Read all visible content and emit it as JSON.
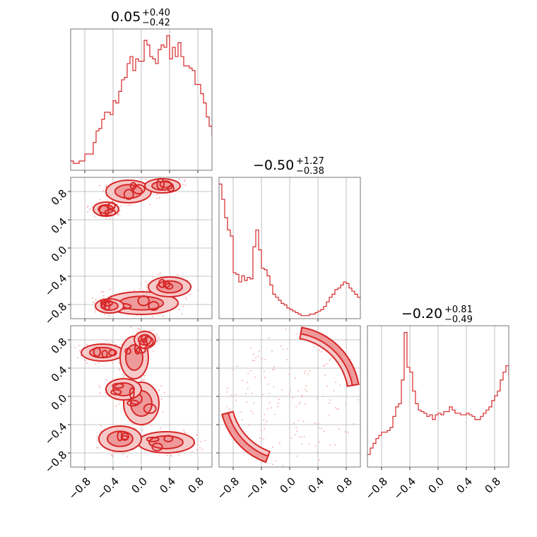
{
  "colors": {
    "series": "#d62728",
    "grid": "#b0b0b0",
    "scatter": "#f5b5b5",
    "fill_light": "#f6c9c9",
    "fill_mid": "#ef9a9a"
  },
  "chart_data": [
    {
      "type": "histogram",
      "panel": "hist-param-1",
      "title": {
        "value": "0.05",
        "plus": "+0.40",
        "minus": "−0.42"
      },
      "x_range": [
        -1.0,
        1.0
      ],
      "bins_x_start": -1.0,
      "bin_width": 0.04,
      "values": [
        4,
        3,
        3,
        4,
        4,
        7,
        7,
        7,
        12,
        17,
        18,
        22,
        25,
        25,
        24,
        30,
        29,
        34,
        39,
        40,
        46,
        49,
        43,
        48,
        47,
        47,
        56,
        54,
        49,
        48,
        46,
        52,
        54,
        53,
        58,
        48,
        53,
        49,
        55,
        49,
        45,
        45,
        44,
        43,
        37,
        37,
        33,
        29,
        23,
        19,
        15,
        13,
        11,
        8,
        6,
        3,
        3,
        2,
        2,
        1
      ],
      "grid": true,
      "xticks": [
        "−0.8",
        "−0.4",
        "0.0",
        "0.4",
        "0.8"
      ]
    },
    {
      "type": "histogram",
      "panel": "hist-param-2",
      "title": {
        "value": "−0.50",
        "plus": "+1.27",
        "minus": "−0.38"
      },
      "x_range": [
        -1.0,
        1.0
      ],
      "bins_x_start": -1.0,
      "bin_width": 0.04,
      "values": [
        88,
        78,
        66,
        58,
        54,
        30,
        29,
        24,
        28,
        25,
        27,
        26,
        47,
        58,
        45,
        33,
        32,
        28,
        22,
        16,
        14,
        12,
        10,
        9,
        7,
        6,
        5,
        4,
        3,
        2,
        2,
        2,
        3,
        3,
        4,
        5,
        6,
        8,
        11,
        14,
        16,
        19,
        20,
        22,
        24,
        23,
        20,
        18,
        16,
        14,
        13,
        15,
        14,
        13,
        11,
        15,
        20,
        27,
        34,
        41
      ],
      "grid": true,
      "xticks": [
        "−0.8",
        "−0.4",
        "0.0",
        "0.4",
        "0.8"
      ]
    },
    {
      "type": "histogram",
      "panel": "hist-param-3",
      "title": {
        "value": "−0.20",
        "plus": "+0.81",
        "minus": "−0.49"
      },
      "x_range": [
        -1.0,
        1.0
      ],
      "bins_x_start": -1.0,
      "bin_width": 0.04,
      "values": [
        8,
        12,
        15,
        18,
        20,
        22,
        22,
        23,
        25,
        32,
        38,
        40,
        55,
        85,
        63,
        60,
        48,
        40,
        36,
        35,
        34,
        32,
        33,
        30,
        33,
        34,
        33,
        35,
        35,
        38,
        36,
        34,
        34,
        33,
        33,
        34,
        33,
        32,
        30,
        30,
        32,
        34,
        36,
        38,
        42,
        45,
        48,
        55,
        60,
        64,
        58,
        50,
        38,
        28,
        20,
        15,
        12,
        10,
        8,
        6
      ],
      "grid": true,
      "xticks": [
        "−0.8",
        "−0.4",
        "0.0",
        "0.4",
        "0.8"
      ]
    },
    {
      "type": "contour",
      "panel": "contour-p1-p2",
      "x_range": [
        -1.0,
        1.0
      ],
      "y_range": [
        -1.0,
        1.0
      ],
      "grid": true,
      "yticks": [
        "−0.8",
        "−0.4",
        "0.0",
        "0.4",
        "0.8"
      ],
      "regions": [
        {
          "cx": -0.18,
          "cy": 0.8,
          "rx": 0.32,
          "ry": 0.16
        },
        {
          "cx": 0.3,
          "cy": 0.88,
          "rx": 0.25,
          "ry": 0.1
        },
        {
          "cx": -0.5,
          "cy": 0.55,
          "rx": 0.18,
          "ry": 0.1
        },
        {
          "cx": 0.0,
          "cy": -0.78,
          "rx": 0.52,
          "ry": 0.16
        },
        {
          "cx": 0.4,
          "cy": -0.55,
          "rx": 0.3,
          "ry": 0.14
        },
        {
          "cx": -0.45,
          "cy": -0.82,
          "rx": 0.2,
          "ry": 0.1
        }
      ]
    },
    {
      "type": "contour",
      "panel": "contour-p1-p3",
      "x_range": [
        -1.0,
        1.0
      ],
      "y_range": [
        -1.0,
        1.0
      ],
      "grid": true,
      "xticks": [
        "−0.8",
        "−0.4",
        "0.0",
        "0.4",
        "0.8"
      ],
      "yticks": [
        "−0.8",
        "−0.4",
        "0.0",
        "0.4",
        "0.8"
      ],
      "regions": [
        {
          "cx": -0.55,
          "cy": 0.62,
          "rx": 0.3,
          "ry": 0.12
        },
        {
          "cx": -0.1,
          "cy": 0.55,
          "rx": 0.2,
          "ry": 0.3
        },
        {
          "cx": 0.0,
          "cy": -0.1,
          "rx": 0.25,
          "ry": 0.3
        },
        {
          "cx": -0.25,
          "cy": 0.1,
          "rx": 0.25,
          "ry": 0.15
        },
        {
          "cx": 0.35,
          "cy": -0.65,
          "rx": 0.4,
          "ry": 0.15
        },
        {
          "cx": -0.3,
          "cy": -0.6,
          "rx": 0.3,
          "ry": 0.18
        },
        {
          "cx": 0.05,
          "cy": 0.8,
          "rx": 0.15,
          "ry": 0.12
        }
      ]
    },
    {
      "type": "contour",
      "panel": "contour-p2-p3",
      "x_range": [
        -1.0,
        1.0
      ],
      "y_range": [
        -1.0,
        1.0
      ],
      "grid": true,
      "xticks": [
        "−0.8",
        "−0.4",
        "0.0",
        "0.4",
        "0.8"
      ],
      "arcs": [
        {
          "cx": 0.0,
          "cy": 0.0,
          "r": 0.97,
          "start_deg": 10,
          "end_deg": 80
        },
        {
          "cx": 0.0,
          "cy": 0.0,
          "r": 0.97,
          "start_deg": 195,
          "end_deg": 250
        }
      ]
    }
  ]
}
